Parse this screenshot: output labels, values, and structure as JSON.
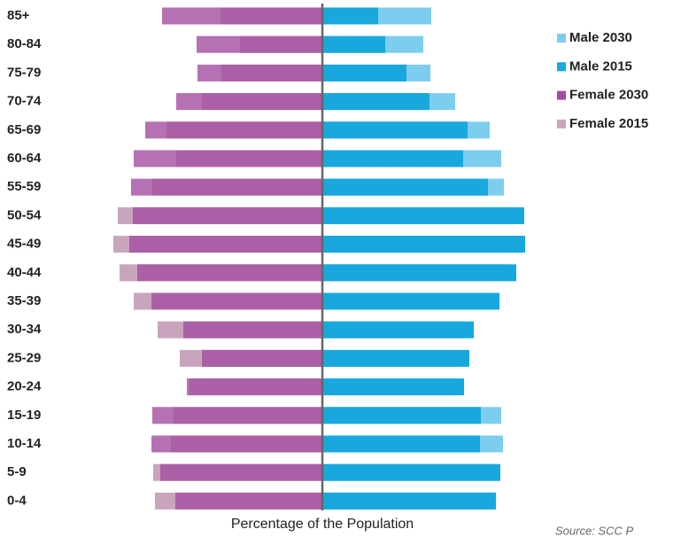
{
  "chart_data": {
    "type": "pyramid",
    "x_label": "Percentage of the Population",
    "source": "Source: SCC P",
    "categories": [
      "85+",
      "80-84",
      "75-79",
      "70-74",
      "65-69",
      "60-64",
      "55-59",
      "50-54",
      "45-49",
      "40-44",
      "35-39",
      "30-34",
      "25-29",
      "20-24",
      "15-19",
      "10-14",
      "5-9",
      "0-4"
    ],
    "xlim": [
      -5,
      5
    ],
    "series": [
      {
        "name": "Male 2030",
        "color": "#7dcdee",
        "side": "right",
        "values": [
          2.46,
          2.28,
          2.44,
          3.0,
          3.78,
          4.04,
          4.1,
          4.3,
          4.4,
          4.2,
          3.8,
          3.2,
          3.1,
          3.0,
          4.04,
          4.08,
          3.9,
          3.8
        ]
      },
      {
        "name": "Male 2015",
        "color": "#18a8de",
        "side": "right",
        "values": [
          1.26,
          1.42,
          1.9,
          2.42,
          3.28,
          3.18,
          3.74,
          4.56,
          4.58,
          4.38,
          4.0,
          3.42,
          3.32,
          3.2,
          3.58,
          3.56,
          4.02,
          3.92
        ]
      },
      {
        "name": "Female 2030",
        "color": "#a24ea0",
        "side": "left",
        "values": [
          3.62,
          2.84,
          2.82,
          3.3,
          4.0,
          4.26,
          4.32,
          4.28,
          4.36,
          4.18,
          3.86,
          3.14,
          2.72,
          3.06,
          3.84,
          3.86,
          3.66,
          3.32
        ]
      },
      {
        "name": "Female 2015",
        "color": "#c9a5bd",
        "side": "left",
        "values": [
          2.3,
          1.86,
          2.28,
          2.72,
          3.52,
          3.3,
          3.84,
          4.62,
          4.72,
          4.58,
          4.26,
          3.72,
          3.22,
          3.0,
          3.36,
          3.42,
          3.82,
          3.78
        ]
      }
    ]
  }
}
